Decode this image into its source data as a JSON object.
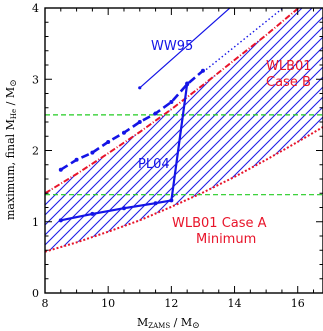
{
  "chart_data": {
    "type": "line",
    "xlabel": "M_ZAMS / M_⊙",
    "ylabel": "maximum, final M_He / M_⊙",
    "xlim": [
      8,
      16.8
    ],
    "ylim": [
      0,
      4
    ],
    "xticks": [
      8,
      10,
      12,
      14,
      16
    ],
    "yticks": [
      0,
      1,
      2,
      3,
      4
    ],
    "colors": {
      "blue": "#1414e6",
      "red": "#e8142a",
      "green": "#22cc22",
      "band": "#1e1ee6"
    },
    "shaded_band": {
      "lower": {
        "x": [
          8,
          9,
          10,
          11,
          12,
          13,
          14,
          15,
          16,
          16.8
        ],
        "y": [
          0.58,
          0.71,
          0.86,
          1.02,
          1.21,
          1.41,
          1.63,
          1.87,
          2.12,
          2.33
        ]
      },
      "upper": {
        "x": [
          8,
          9,
          10,
          11,
          12,
          13,
          14,
          15,
          16,
          16.8
        ],
        "y": [
          1.4,
          1.67,
          1.96,
          2.26,
          2.58,
          2.92,
          3.27,
          3.62,
          3.99,
          4.28
        ]
      }
    },
    "series": [
      {
        "name": "PL04",
        "style": "solid",
        "x": [
          8.5,
          9.5,
          10.5,
          11.5,
          12.0,
          12.5
        ],
        "y": [
          1.02,
          1.11,
          1.19,
          1.26,
          1.3,
          2.94
        ]
      },
      {
        "name": "",
        "style": "dashed",
        "x": [
          8.5,
          9.0,
          9.5,
          10.0,
          10.5,
          11.0,
          11.5,
          12.0,
          12.5,
          13.0
        ],
        "y": [
          1.73,
          1.87,
          1.97,
          2.12,
          2.25,
          2.4,
          2.52,
          2.68,
          2.93,
          3.12
        ]
      },
      {
        "name": "WW95",
        "style": "solid-thin",
        "x": [
          11,
          15
        ],
        "y": [
          2.88,
          4.45
        ]
      },
      {
        "name": "",
        "style": "dotted",
        "x": [
          13,
          16.8
        ],
        "y": [
          3.1,
          4.45
        ]
      }
    ],
    "hlines": [
      {
        "y": 2.5,
        "style": "dashed",
        "color": "green"
      },
      {
        "y": 1.38,
        "style": "dashed",
        "color": "green"
      }
    ],
    "annotations": {
      "ww95": "WW95",
      "pl04": "PL04",
      "wlb01_b_line1": "WLB01",
      "wlb01_b_line2": "Case B",
      "wlb01_a_line1": "WLB01 Case A",
      "wlb01_a_line2": "Minimum"
    }
  }
}
